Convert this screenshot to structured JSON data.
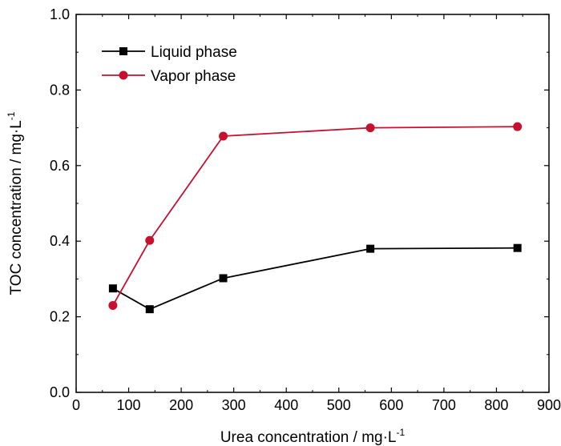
{
  "chart_data": {
    "type": "line",
    "x": [
      70,
      140,
      280,
      560,
      840
    ],
    "series": [
      {
        "name": "Liquid phase",
        "values": [
          0.275,
          0.22,
          0.302,
          0.38,
          0.382
        ],
        "color": "#000000",
        "marker": "square"
      },
      {
        "name": "Vapor phase",
        "values": [
          0.23,
          0.402,
          0.678,
          0.7,
          0.703
        ],
        "color": "#c8102e",
        "marker": "circle"
      }
    ],
    "xlabel": "Urea concentration / mg·L",
    "xlabel_sup": "-1",
    "ylabel": "TOC concentration / mg·L",
    "ylabel_sup": "-1",
    "xlim": [
      0,
      900
    ],
    "ylim": [
      0.0,
      1.0
    ],
    "xticks": [
      "0",
      "100",
      "200",
      "300",
      "400",
      "500",
      "600",
      "700",
      "800",
      "900"
    ],
    "yticks": [
      "0.0",
      "0.2",
      "0.4",
      "0.6",
      "0.8",
      "1.0"
    ],
    "grid": false,
    "legend_position": "top-left"
  }
}
